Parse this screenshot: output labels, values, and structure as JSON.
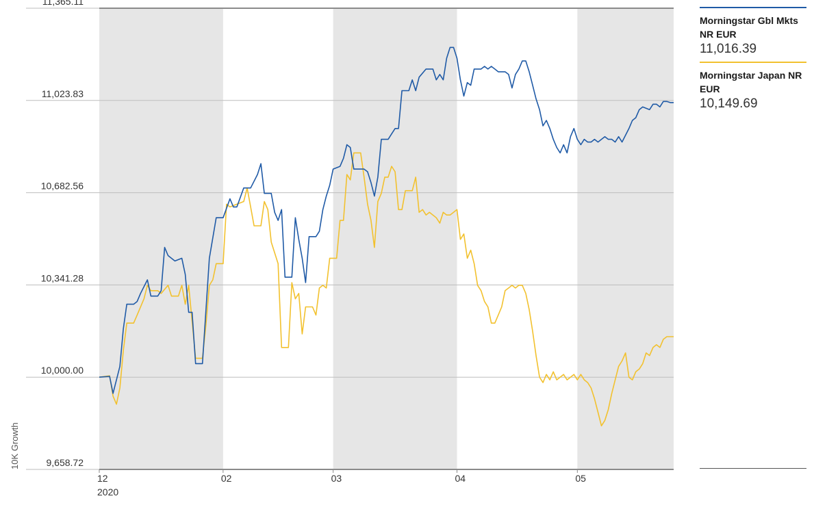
{
  "colors": {
    "series_1": "#1f5aa6",
    "series_2": "#f2c12e",
    "band": "#e6e6e6",
    "grid": "#bdbdbd",
    "axis": "#8a8a8a"
  },
  "legend": {
    "items": [
      {
        "name": "Morningstar Gbl Mkts NR EUR",
        "value": "11,016.39"
      },
      {
        "name": "Morningstar Japan NR EUR",
        "value": "10,149.69"
      }
    ]
  },
  "chart_data": {
    "type": "line",
    "title": "",
    "xlabel": "",
    "ylabel": "10K Growth",
    "y_ticks": [
      "11,365.11",
      "11,023.83",
      "10,682.56",
      "10,341.28",
      "10,000.00",
      "9,658.72"
    ],
    "ylim": [
      9658.72,
      11365.11
    ],
    "x_ticks": [
      {
        "label": "12",
        "sublabel": "2020",
        "x": 0
      },
      {
        "label": "02",
        "x": 36
      },
      {
        "label": "03",
        "x": 68
      },
      {
        "label": "04",
        "x": 104
      },
      {
        "label": "05",
        "x": 139
      }
    ],
    "x_range": [
      0,
      167
    ],
    "shaded_months": [
      [
        0,
        36
      ],
      [
        68,
        104
      ],
      [
        139,
        167
      ]
    ],
    "grid": "horizontal",
    "series": [
      {
        "name": "Morningstar Gbl Mkts NR EUR",
        "color": "#1f5aa6",
        "points": [
          [
            0,
            10000
          ],
          [
            3,
            10003
          ],
          [
            4,
            9940
          ],
          [
            6,
            10040
          ],
          [
            7,
            10180
          ],
          [
            8,
            10270
          ],
          [
            10,
            10270
          ],
          [
            11,
            10280
          ],
          [
            12,
            10310
          ],
          [
            14,
            10360
          ],
          [
            15,
            10300
          ],
          [
            17,
            10300
          ],
          [
            18,
            10320
          ],
          [
            19,
            10480
          ],
          [
            20,
            10450
          ],
          [
            22,
            10430
          ],
          [
            24,
            10440
          ],
          [
            25,
            10380
          ],
          [
            26,
            10240
          ],
          [
            27,
            10240
          ],
          [
            28,
            10050
          ],
          [
            30,
            10050
          ],
          [
            32,
            10440
          ],
          [
            34,
            10590
          ],
          [
            36,
            10590
          ],
          [
            38,
            10660
          ],
          [
            39,
            10630
          ],
          [
            40,
            10630
          ],
          [
            42,
            10700
          ],
          [
            44,
            10700
          ],
          [
            46,
            10750
          ],
          [
            47,
            10790
          ],
          [
            48,
            10680
          ],
          [
            50,
            10680
          ],
          [
            51,
            10610
          ],
          [
            52,
            10580
          ],
          [
            53,
            10620
          ],
          [
            54,
            10370
          ],
          [
            56,
            10370
          ],
          [
            57,
            10590
          ],
          [
            58,
            10510
          ],
          [
            59,
            10440
          ],
          [
            60,
            10350
          ],
          [
            61,
            10520
          ],
          [
            63,
            10520
          ],
          [
            64,
            10540
          ],
          [
            65,
            10620
          ],
          [
            66,
            10670
          ],
          [
            67,
            10710
          ],
          [
            68,
            10770
          ],
          [
            70,
            10780
          ],
          [
            71,
            10810
          ],
          [
            72,
            10860
          ],
          [
            73,
            10850
          ],
          [
            74,
            10770
          ],
          [
            77,
            10770
          ],
          [
            78,
            10760
          ],
          [
            79,
            10720
          ],
          [
            80,
            10670
          ],
          [
            81,
            10740
          ],
          [
            82,
            10880
          ],
          [
            84,
            10880
          ],
          [
            85,
            10900
          ],
          [
            86,
            10920
          ],
          [
            87,
            10920
          ],
          [
            88,
            11060
          ],
          [
            90,
            11060
          ],
          [
            91,
            11100
          ],
          [
            92,
            11060
          ],
          [
            93,
            11110
          ],
          [
            95,
            11140
          ],
          [
            97,
            11140
          ],
          [
            98,
            11100
          ],
          [
            99,
            11120
          ],
          [
            100,
            11100
          ],
          [
            101,
            11180
          ],
          [
            102,
            11220
          ],
          [
            103,
            11220
          ],
          [
            104,
            11180
          ],
          [
            105,
            11100
          ],
          [
            106,
            11040
          ],
          [
            107,
            11090
          ],
          [
            108,
            11080
          ],
          [
            109,
            11140
          ],
          [
            111,
            11140
          ],
          [
            112,
            11150
          ],
          [
            113,
            11140
          ],
          [
            114,
            11150
          ],
          [
            115,
            11140
          ],
          [
            116,
            11130
          ],
          [
            118,
            11130
          ],
          [
            119,
            11120
          ],
          [
            120,
            11070
          ],
          [
            121,
            11120
          ],
          [
            122,
            11140
          ],
          [
            123,
            11170
          ],
          [
            124,
            11170
          ],
          [
            125,
            11130
          ],
          [
            126,
            11080
          ],
          [
            127,
            11030
          ],
          [
            128,
            10990
          ],
          [
            129,
            10930
          ],
          [
            130,
            10950
          ],
          [
            131,
            10920
          ],
          [
            132,
            10880
          ],
          [
            133,
            10850
          ],
          [
            134,
            10830
          ],
          [
            135,
            10860
          ],
          [
            136,
            10830
          ],
          [
            137,
            10890
          ],
          [
            138,
            10920
          ],
          [
            139,
            10880
          ],
          [
            140,
            10860
          ],
          [
            141,
            10880
          ],
          [
            142,
            10870
          ],
          [
            143,
            10870
          ],
          [
            144,
            10880
          ],
          [
            145,
            10870
          ],
          [
            146,
            10880
          ],
          [
            147,
            10890
          ],
          [
            148,
            10880
          ],
          [
            149,
            10880
          ],
          [
            150,
            10870
          ],
          [
            151,
            10890
          ],
          [
            152,
            10870
          ],
          [
            154,
            10920
          ],
          [
            155,
            10950
          ],
          [
            156,
            10960
          ],
          [
            157,
            10990
          ],
          [
            158,
            11000
          ],
          [
            160,
            10990
          ],
          [
            161,
            11010
          ],
          [
            162,
            11010
          ],
          [
            163,
            11000
          ],
          [
            164,
            11020
          ],
          [
            165,
            11020
          ],
          [
            166,
            11016
          ],
          [
            167,
            11016
          ]
        ]
      },
      {
        "name": "Morningstar Japan NR EUR",
        "color": "#f2c12e",
        "points": [
          [
            0,
            10000
          ],
          [
            3,
            10005
          ],
          [
            4,
            9930
          ],
          [
            5,
            9900
          ],
          [
            6,
            9960
          ],
          [
            7,
            10100
          ],
          [
            8,
            10200
          ],
          [
            10,
            10200
          ],
          [
            11,
            10230
          ],
          [
            13,
            10290
          ],
          [
            14,
            10340
          ],
          [
            15,
            10320
          ],
          [
            17,
            10320
          ],
          [
            18,
            10310
          ],
          [
            20,
            10340
          ],
          [
            21,
            10300
          ],
          [
            23,
            10300
          ],
          [
            24,
            10340
          ],
          [
            25,
            10270
          ],
          [
            26,
            10340
          ],
          [
            28,
            10070
          ],
          [
            30,
            10070
          ],
          [
            31,
            10190
          ],
          [
            32,
            10340
          ],
          [
            33,
            10360
          ],
          [
            34,
            10420
          ],
          [
            36,
            10420
          ],
          [
            37,
            10640
          ],
          [
            38,
            10630
          ],
          [
            40,
            10640
          ],
          [
            42,
            10650
          ],
          [
            43,
            10700
          ],
          [
            44,
            10630
          ],
          [
            45,
            10560
          ],
          [
            47,
            10560
          ],
          [
            48,
            10650
          ],
          [
            49,
            10620
          ],
          [
            50,
            10500
          ],
          [
            51,
            10460
          ],
          [
            52,
            10420
          ],
          [
            53,
            10110
          ],
          [
            55,
            10110
          ],
          [
            56,
            10350
          ],
          [
            57,
            10290
          ],
          [
            58,
            10310
          ],
          [
            59,
            10160
          ],
          [
            60,
            10260
          ],
          [
            62,
            10260
          ],
          [
            63,
            10230
          ],
          [
            64,
            10330
          ],
          [
            65,
            10340
          ],
          [
            66,
            10330
          ],
          [
            67,
            10440
          ],
          [
            69,
            10440
          ],
          [
            70,
            10580
          ],
          [
            71,
            10580
          ],
          [
            72,
            10750
          ],
          [
            73,
            10730
          ],
          [
            74,
            10830
          ],
          [
            76,
            10830
          ],
          [
            77,
            10740
          ],
          [
            78,
            10640
          ],
          [
            79,
            10580
          ],
          [
            80,
            10480
          ],
          [
            81,
            10650
          ],
          [
            82,
            10680
          ],
          [
            83,
            10740
          ],
          [
            84,
            10740
          ],
          [
            85,
            10780
          ],
          [
            86,
            10760
          ],
          [
            87,
            10620
          ],
          [
            88,
            10620
          ],
          [
            89,
            10690
          ],
          [
            91,
            10690
          ],
          [
            92,
            10740
          ],
          [
            93,
            10610
          ],
          [
            94,
            10620
          ],
          [
            95,
            10600
          ],
          [
            96,
            10610
          ],
          [
            97,
            10600
          ],
          [
            98,
            10590
          ],
          [
            99,
            10570
          ],
          [
            100,
            10610
          ],
          [
            101,
            10600
          ],
          [
            102,
            10600
          ],
          [
            103,
            10610
          ],
          [
            104,
            10620
          ],
          [
            105,
            10510
          ],
          [
            106,
            10530
          ],
          [
            107,
            10440
          ],
          [
            108,
            10470
          ],
          [
            109,
            10420
          ],
          [
            110,
            10340
          ],
          [
            111,
            10320
          ],
          [
            112,
            10280
          ],
          [
            113,
            10260
          ],
          [
            114,
            10200
          ],
          [
            115,
            10200
          ],
          [
            116,
            10230
          ],
          [
            117,
            10260
          ],
          [
            118,
            10320
          ],
          [
            119,
            10330
          ],
          [
            120,
            10340
          ],
          [
            121,
            10330
          ],
          [
            122,
            10340
          ],
          [
            123,
            10340
          ],
          [
            124,
            10310
          ],
          [
            125,
            10250
          ],
          [
            126,
            10170
          ],
          [
            127,
            10080
          ],
          [
            128,
            10000
          ],
          [
            129,
            9980
          ],
          [
            130,
            10010
          ],
          [
            131,
            9990
          ],
          [
            132,
            10020
          ],
          [
            133,
            9990
          ],
          [
            134,
            10000
          ],
          [
            135,
            10010
          ],
          [
            136,
            9990
          ],
          [
            137,
            10000
          ],
          [
            138,
            10010
          ],
          [
            139,
            9990
          ],
          [
            140,
            10010
          ],
          [
            141,
            9990
          ],
          [
            142,
            9980
          ],
          [
            143,
            9960
          ],
          [
            144,
            9920
          ],
          [
            145,
            9870
          ],
          [
            146,
            9820
          ],
          [
            147,
            9840
          ],
          [
            148,
            9880
          ],
          [
            149,
            9940
          ],
          [
            150,
            9990
          ],
          [
            151,
            10040
          ],
          [
            152,
            10060
          ],
          [
            153,
            10090
          ],
          [
            154,
            10000
          ],
          [
            155,
            9990
          ],
          [
            156,
            10020
          ],
          [
            157,
            10030
          ],
          [
            158,
            10050
          ],
          [
            159,
            10090
          ],
          [
            160,
            10080
          ],
          [
            161,
            10110
          ],
          [
            162,
            10120
          ],
          [
            163,
            10110
          ],
          [
            164,
            10140
          ],
          [
            165,
            10150
          ],
          [
            166,
            10150
          ],
          [
            167,
            10150
          ]
        ]
      }
    ]
  }
}
